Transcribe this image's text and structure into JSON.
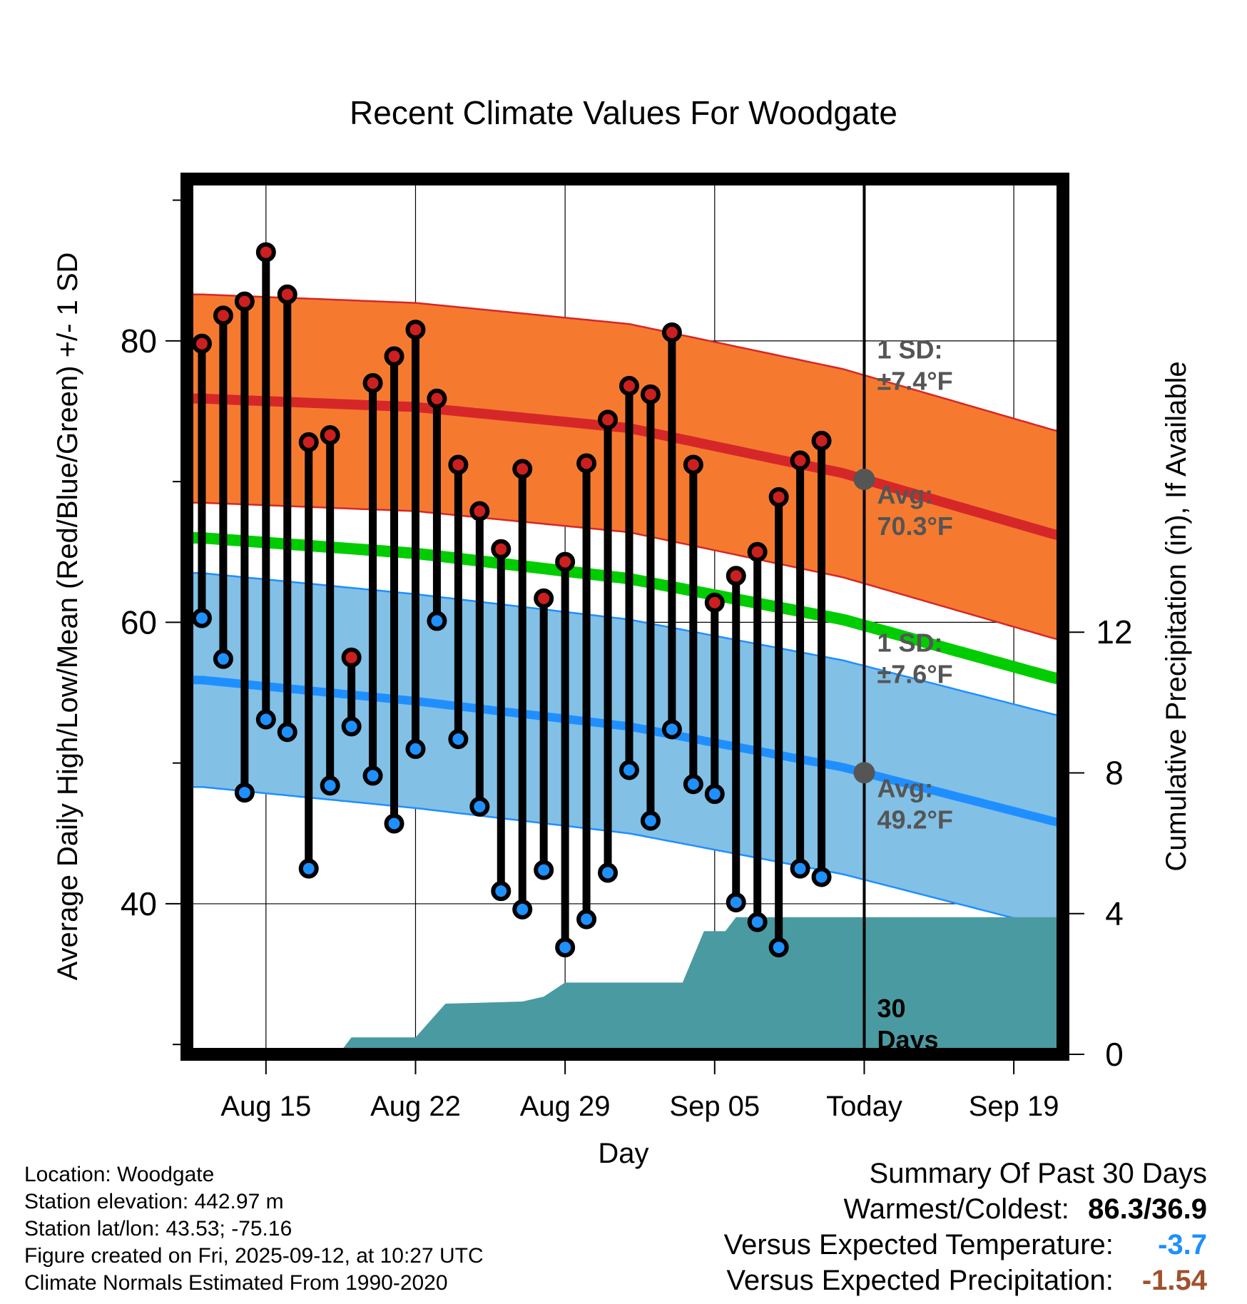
{
  "chart_data": {
    "type": "line",
    "title": "Recent Climate Values For Woodgate",
    "xlabel": "Day",
    "ylabel": "Average Daily High/Low/Mean (Red/Blue/Green) +/- 1 SD",
    "ylabel_right": "Cumulative Precipitation (in), If Available",
    "x_tick_labels": [
      "Aug 15",
      "Aug 22",
      "Aug 29",
      "Sep 05",
      "Today",
      "Sep 19"
    ],
    "x_tick_days": [
      3,
      10,
      17,
      24,
      31,
      38
    ],
    "xlim": [
      -0.7,
      40.3
    ],
    "ylim": [
      29.3,
      91.5
    ],
    "y_ticks": [
      40,
      60,
      80
    ],
    "y_minor_ticks": [
      30,
      50,
      70,
      90
    ],
    "y2_ticks": [
      0,
      4,
      8,
      12
    ],
    "y2_per_degree": 0.4,
    "today_day": 31,
    "observed_days": [
      0,
      1,
      2,
      3,
      4,
      5,
      6,
      7,
      8,
      9,
      10,
      11,
      12,
      13,
      14,
      15,
      16,
      17,
      18,
      19,
      20,
      21,
      22,
      23,
      24,
      25,
      26,
      27,
      28,
      29
    ],
    "observed_high": [
      79.8,
      81.8,
      82.8,
      86.3,
      83.3,
      72.8,
      73.3,
      57.5,
      77.0,
      78.9,
      80.8,
      75.9,
      71.2,
      67.9,
      65.2,
      70.9,
      61.7,
      64.3,
      71.3,
      74.4,
      76.8,
      76.2,
      80.6,
      71.2,
      61.4,
      63.3,
      65.0,
      68.9,
      71.5,
      72.9
    ],
    "observed_low": [
      60.3,
      57.4,
      47.9,
      53.1,
      52.2,
      42.5,
      48.4,
      52.6,
      49.1,
      45.7,
      51.0,
      60.1,
      51.7,
      46.9,
      40.9,
      39.6,
      42.4,
      36.9,
      38.9,
      42.2,
      49.5,
      45.9,
      52.4,
      48.5,
      47.8,
      40.1,
      38.7,
      36.9,
      42.5,
      41.9
    ],
    "normal_days": [
      0,
      10,
      20,
      30,
      40
    ],
    "normal_high_mean": [
      75.9,
      75.3,
      73.8,
      70.6,
      66.2
    ],
    "normal_high_sd": 7.4,
    "normal_low_mean": [
      55.9,
      54.4,
      52.6,
      49.7,
      45.8
    ],
    "normal_low_sd": 7.6,
    "normal_mean": [
      66.0,
      64.9,
      63.1,
      60.2,
      56.0
    ],
    "precip_days": [
      0,
      6.4,
      7,
      10,
      11.4,
      15,
      16,
      17,
      22.5,
      23.5,
      24.5,
      25,
      40
    ],
    "precip_cumulative": [
      0,
      0,
      0.48,
      0.48,
      1.44,
      1.5,
      1.64,
      2.04,
      2.04,
      3.5,
      3.5,
      3.9,
      3.9
    ],
    "annotations": {
      "high_sd": [
        "1 SD:",
        "±7.4°F"
      ],
      "high_avg": [
        "Avg:",
        "70.3°F"
      ],
      "low_sd": [
        "1 SD:",
        "±7.6°F"
      ],
      "low_avg": [
        "Avg:",
        "49.2°F"
      ],
      "window": [
        "30",
        "Days"
      ]
    },
    "colors": {
      "high": "#d62728",
      "high_band": "#f57a30",
      "low": "#1f8fff",
      "low_band": "#82c0e6",
      "mean": "#00cc00",
      "precip": "#4a9aa2",
      "marker_high": "#cc1f1f",
      "marker_low": "#1e90ff",
      "annotation": "#555555"
    }
  },
  "info": {
    "location": "Location: Woodgate",
    "elevation": "Station elevation: 442.97 m",
    "latlon": "Station lat/lon: 43.53; -75.16",
    "created": "Figure created on Fri, 2025-09-12, at 10:27 UTC",
    "normals": "Climate Normals Estimated From 1990-2020"
  },
  "summary": {
    "title": "Summary Of Past 30 Days",
    "warm_label": "Warmest/Coldest:",
    "warm_value": "86.3/36.9",
    "temp_label": "Versus Expected Temperature:",
    "temp_value": "-3.7",
    "temp_color": "#1f8fff",
    "precip_label": "Versus Expected Precipitation:",
    "precip_value": "-1.54",
    "precip_color": "#a0522d"
  }
}
